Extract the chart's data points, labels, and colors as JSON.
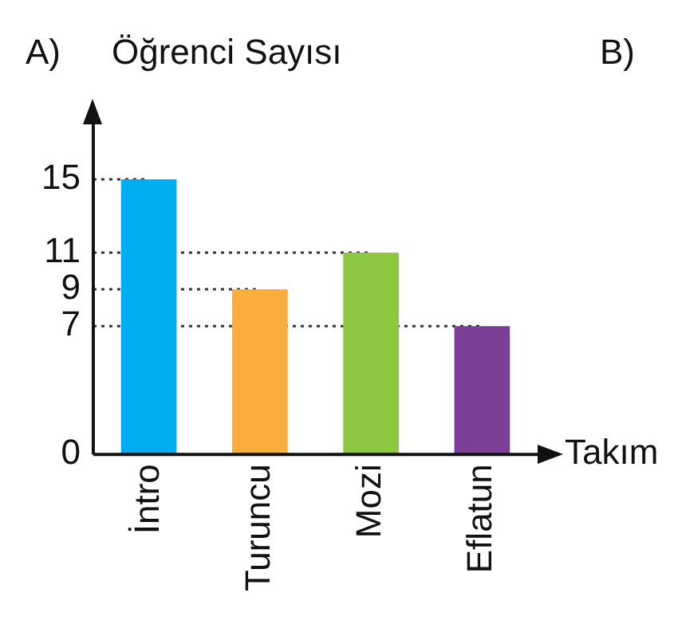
{
  "chart_data": {
    "type": "bar",
    "ylabel": "Öğrenci Sayısı",
    "xlabel": "Takım",
    "annotations": [
      "A)",
      "B)"
    ],
    "categories": [
      "İntro",
      "Turuncu",
      "Mozi",
      "Eflatun"
    ],
    "values": [
      15,
      9,
      11,
      7
    ],
    "colors": [
      "#00aeef",
      "#fbad3b",
      "#8dc63f",
      "#7b3f98"
    ],
    "ylim": [
      0,
      18
    ],
    "yticks": [
      0,
      7,
      9,
      11,
      15
    ],
    "ref_lines": [
      {
        "axis": "y",
        "value": 15,
        "line_style": "dotted",
        "color": "#333333"
      },
      {
        "axis": "y",
        "value": 11,
        "line_style": "dotted",
        "color": "#333333"
      },
      {
        "axis": "y",
        "value": 9,
        "line_style": "dotted",
        "color": "#333333"
      },
      {
        "axis": "y",
        "value": 7,
        "line_style": "dotted",
        "color": "#333333"
      }
    ],
    "grid": false,
    "legend": false
  }
}
